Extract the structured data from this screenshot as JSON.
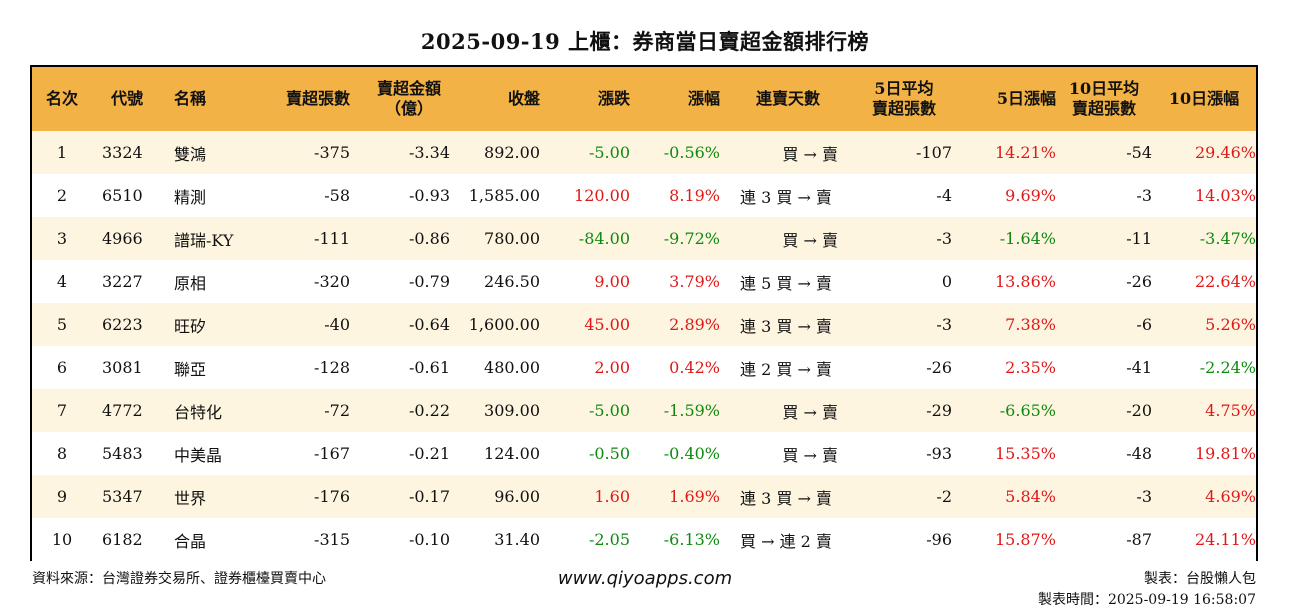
{
  "title": "2025-09-19 上櫃：券商當日賣超金額排行榜",
  "headers": {
    "rank": "名次",
    "code": "代號",
    "name": "名稱",
    "sell_shares": "賣超張數",
    "sell_amount_l1": "賣超金額",
    "sell_amount_l2": "（億）",
    "close": "收盤",
    "change": "漲跌",
    "pct": "漲幅",
    "streak": "連賣天數",
    "avg5_l1": "5日平均",
    "avg5_l2": "賣超張數",
    "pct5": "5日漲幅",
    "avg10_l1": "10日平均",
    "avg10_l2": "賣超張數",
    "pct10": "10日漲幅"
  },
  "rows": [
    {
      "rank": "1",
      "code": "3324",
      "name": "雙鴻",
      "sell_shares": "-375",
      "sell_amount": "-3.34",
      "close": "892.00",
      "change": "-5.00",
      "pct": "-0.56%",
      "streak": "買 → 賣",
      "avg5": "-107",
      "pct5": "14.21%",
      "avg10": "-54",
      "pct10": "29.46%"
    },
    {
      "rank": "2",
      "code": "6510",
      "name": "精測",
      "sell_shares": "-58",
      "sell_amount": "-0.93",
      "close": "1,585.00",
      "change": "120.00",
      "pct": "8.19%",
      "streak": "連 3 買 → 賣",
      "avg5": "-4",
      "pct5": "9.69%",
      "avg10": "-3",
      "pct10": "14.03%"
    },
    {
      "rank": "3",
      "code": "4966",
      "name": "譜瑞-KY",
      "sell_shares": "-111",
      "sell_amount": "-0.86",
      "close": "780.00",
      "change": "-84.00",
      "pct": "-9.72%",
      "streak": "買 → 賣",
      "avg5": "-3",
      "pct5": "-1.64%",
      "avg10": "-11",
      "pct10": "-3.47%"
    },
    {
      "rank": "4",
      "code": "3227",
      "name": "原相",
      "sell_shares": "-320",
      "sell_amount": "-0.79",
      "close": "246.50",
      "change": "9.00",
      "pct": "3.79%",
      "streak": "連 5 買 → 賣",
      "avg5": "0",
      "pct5": "13.86%",
      "avg10": "-26",
      "pct10": "22.64%"
    },
    {
      "rank": "5",
      "code": "6223",
      "name": "旺矽",
      "sell_shares": "-40",
      "sell_amount": "-0.64",
      "close": "1,600.00",
      "change": "45.00",
      "pct": "2.89%",
      "streak": "連 3 買 → 賣",
      "avg5": "-3",
      "pct5": "7.38%",
      "avg10": "-6",
      "pct10": "5.26%"
    },
    {
      "rank": "6",
      "code": "3081",
      "name": "聯亞",
      "sell_shares": "-128",
      "sell_amount": "-0.61",
      "close": "480.00",
      "change": "2.00",
      "pct": "0.42%",
      "streak": "連 2 買 → 賣",
      "avg5": "-26",
      "pct5": "2.35%",
      "avg10": "-41",
      "pct10": "-2.24%"
    },
    {
      "rank": "7",
      "code": "4772",
      "name": "台特化",
      "sell_shares": "-72",
      "sell_amount": "-0.22",
      "close": "309.00",
      "change": "-5.00",
      "pct": "-1.59%",
      "streak": "買 → 賣",
      "avg5": "-29",
      "pct5": "-6.65%",
      "avg10": "-20",
      "pct10": "4.75%"
    },
    {
      "rank": "8",
      "code": "5483",
      "name": "中美晶",
      "sell_shares": "-167",
      "sell_amount": "-0.21",
      "close": "124.00",
      "change": "-0.50",
      "pct": "-0.40%",
      "streak": "買 → 賣",
      "avg5": "-93",
      "pct5": "15.35%",
      "avg10": "-48",
      "pct10": "19.81%"
    },
    {
      "rank": "9",
      "code": "5347",
      "name": "世界",
      "sell_shares": "-176",
      "sell_amount": "-0.17",
      "close": "96.00",
      "change": "1.60",
      "pct": "1.69%",
      "streak": "連 3 買 → 賣",
      "avg5": "-2",
      "pct5": "5.84%",
      "avg10": "-3",
      "pct10": "4.69%"
    },
    {
      "rank": "10",
      "code": "6182",
      "name": "合晶",
      "sell_shares": "-315",
      "sell_amount": "-0.10",
      "close": "31.40",
      "change": "-2.05",
      "pct": "-6.13%",
      "streak": "買 → 連 2 賣",
      "avg5": "-96",
      "pct5": "15.87%",
      "avg10": "-87",
      "pct10": "24.11%"
    }
  ],
  "colors": {
    "header_bg": "#f3b245",
    "odd_row_bg": "#fdf5e0",
    "positive": "#e01818",
    "negative": "#0f8a0f"
  },
  "footer": {
    "source": "資料來源：台灣證券交易所、證券櫃檯買賣中心",
    "site": "www.qiyoapps.com",
    "author": "製表：台股懶人包",
    "made_time": "製表時間：2025-09-19 16:58:07"
  }
}
